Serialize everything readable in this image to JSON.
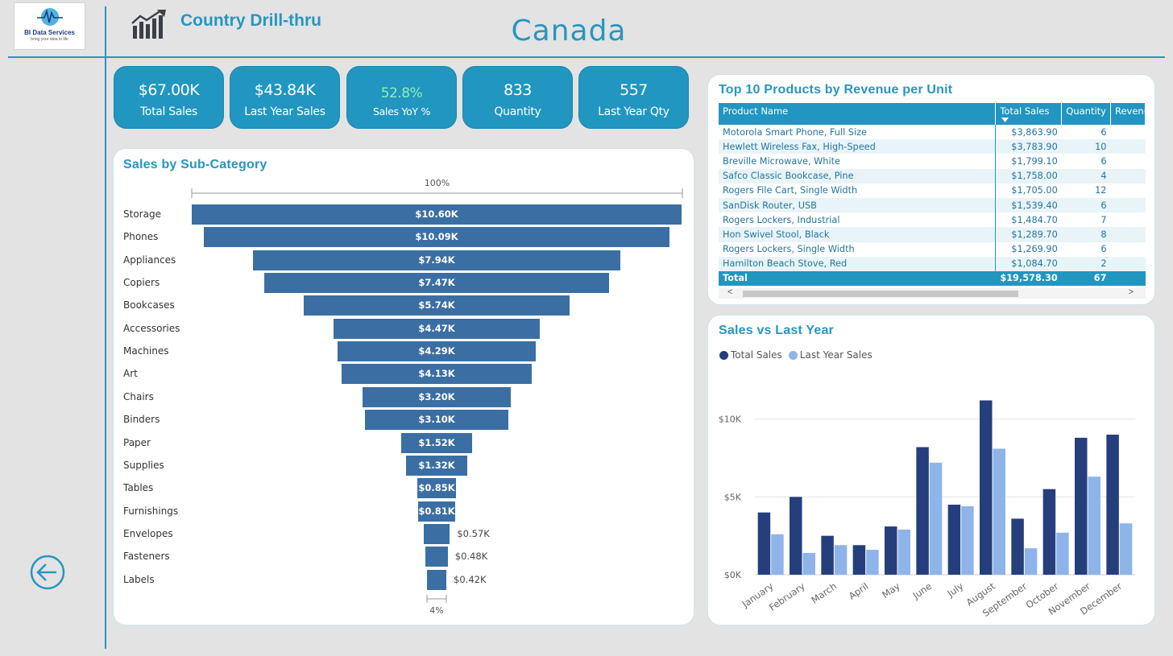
{
  "logo": {
    "line1": "BI Data Services",
    "line2": "bring your data to life"
  },
  "header": {
    "title": "Country Drill-thru",
    "country": "Canada",
    "icon": "bar-chart-growth-icon",
    "back_icon": "back-arrow-icon"
  },
  "colors": {
    "accent": "#2796c1",
    "kpi_bg": "#2196c0",
    "funnel": "#3b6fa3",
    "total_sales": "#253f7d",
    "last_year_sales": "#8fb4ea"
  },
  "kpis": [
    {
      "value": "$67.00K",
      "label": "Total Sales"
    },
    {
      "value": "$43.84K",
      "label": "Last Year Sales"
    },
    {
      "value": "52.8%",
      "label": "Sales YoY %"
    },
    {
      "value": "833",
      "label": "Quantity"
    },
    {
      "value": "557",
      "label": "Last Year Qty"
    }
  ],
  "funnel": {
    "title": "Sales by Sub-Category",
    "top_pct": "100%",
    "bottom_pct": "4%",
    "items": [
      {
        "name": "Storage",
        "value": 10.6,
        "label": "$10.60K"
      },
      {
        "name": "Phones",
        "value": 10.09,
        "label": "$10.09K"
      },
      {
        "name": "Appliances",
        "value": 7.94,
        "label": "$7.94K"
      },
      {
        "name": "Copiers",
        "value": 7.47,
        "label": "$7.47K"
      },
      {
        "name": "Bookcases",
        "value": 5.74,
        "label": "$5.74K"
      },
      {
        "name": "Accessories",
        "value": 4.47,
        "label": "$4.47K"
      },
      {
        "name": "Machines",
        "value": 4.29,
        "label": "$4.29K"
      },
      {
        "name": "Art",
        "value": 4.13,
        "label": "$4.13K"
      },
      {
        "name": "Chairs",
        "value": 3.2,
        "label": "$3.20K"
      },
      {
        "name": "Binders",
        "value": 3.1,
        "label": "$3.10K"
      },
      {
        "name": "Paper",
        "value": 1.52,
        "label": "$1.52K"
      },
      {
        "name": "Supplies",
        "value": 1.32,
        "label": "$1.32K"
      },
      {
        "name": "Tables",
        "value": 0.85,
        "label": "$0.85K"
      },
      {
        "name": "Furnishings",
        "value": 0.81,
        "label": "$0.81K"
      },
      {
        "name": "Envelopes",
        "value": 0.57,
        "label": "$0.57K"
      },
      {
        "name": "Fasteners",
        "value": 0.48,
        "label": "$0.48K"
      },
      {
        "name": "Labels",
        "value": 0.42,
        "label": "$0.42K"
      }
    ]
  },
  "products": {
    "title": "Top 10 Products by Revenue per Unit",
    "columns": [
      "Product Name",
      "Total Sales",
      "Quantity",
      "Revenu"
    ],
    "rows": [
      [
        "Motorola Smart Phone, Full Size",
        "$3,863.90",
        "6"
      ],
      [
        "Hewlett Wireless Fax, High-Speed",
        "$3,783.90",
        "10"
      ],
      [
        "Breville Microwave, White",
        "$1,799.10",
        "6"
      ],
      [
        "Safco Classic Bookcase, Pine",
        "$1,758.00",
        "4"
      ],
      [
        "Rogers File Cart, Single Width",
        "$1,705.00",
        "12"
      ],
      [
        "SanDisk Router, USB",
        "$1,539.40",
        "6"
      ],
      [
        "Rogers Lockers, Industrial",
        "$1,484.70",
        "7"
      ],
      [
        "Hon Swivel Stool, Black",
        "$1,289.70",
        "8"
      ],
      [
        "Rogers Lockers, Single Width",
        "$1,269.90",
        "6"
      ],
      [
        "Hamilton Beach Stove, Red",
        "$1,084.70",
        "2"
      ]
    ],
    "total": [
      "Total",
      "$19,578.30",
      "67"
    ],
    "scroll_left": "<",
    "scroll_right": ">"
  },
  "chart_data": {
    "type": "bar",
    "title": "Sales vs Last Year",
    "categories": [
      "January",
      "February",
      "March",
      "April",
      "May",
      "June",
      "July",
      "August",
      "September",
      "October",
      "November",
      "December"
    ],
    "series": [
      {
        "name": "Total Sales",
        "values": [
          4.0,
          5.0,
          2.5,
          1.9,
          3.1,
          8.2,
          4.5,
          11.2,
          3.6,
          5.5,
          8.8,
          9.0
        ]
      },
      {
        "name": "Last Year Sales",
        "values": [
          2.6,
          1.4,
          1.9,
          1.6,
          2.9,
          7.2,
          4.4,
          8.1,
          1.7,
          2.7,
          6.3,
          3.3
        ]
      }
    ],
    "y_ticks": [
      "$0K",
      "$5K",
      "$10K"
    ],
    "ylim": [
      0,
      12
    ],
    "legend": "top-left",
    "grid": true
  }
}
